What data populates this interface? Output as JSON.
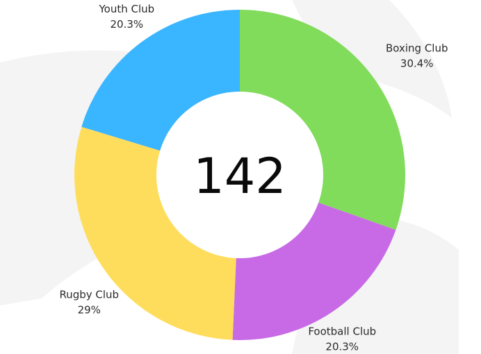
{
  "chart_data": {
    "type": "pie",
    "variant": "donut",
    "center_total": "142",
    "slices": [
      {
        "name": "Boxing Club",
        "value": 30.4,
        "label": "Boxing Club",
        "pct_label": "30.4%",
        "color": "#82DC5C"
      },
      {
        "name": "Football Club",
        "value": 20.3,
        "label": "Football Club",
        "pct_label": "20.3%",
        "color": "#C86AE6"
      },
      {
        "name": "Rugby Club",
        "value": 29.0,
        "label": "Rugby Club",
        "pct_label": "29%",
        "color": "#FFDD5C"
      },
      {
        "name": "Youth Club",
        "value": 20.3,
        "label": "Youth Club",
        "pct_label": "20.3%",
        "color": "#3AB5FF"
      }
    ],
    "start": "top",
    "direction": "clockwise",
    "background_watermark_color": "#F4F4F4"
  }
}
